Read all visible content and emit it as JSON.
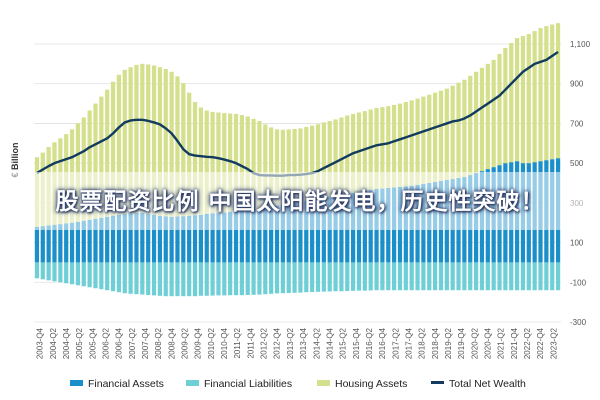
{
  "banner": {
    "text": "股票配资比例 中国太阳能发电，历史性突破！"
  },
  "chart_data": {
    "type": "bar",
    "ylabel": "€ Billion",
    "ylim": [
      -300,
      1200
    ],
    "yticks": [
      1100,
      900,
      700,
      500,
      300,
      100,
      -100,
      -300
    ],
    "grid": true,
    "legend_position": "bottom",
    "colors": {
      "financial_assets": "#1a8fc9",
      "financial_liabilities": "#6ed0d6",
      "housing_assets": "#d4e08c",
      "total_net_wealth": "#123b5e"
    },
    "xtick_labels": [
      "2003-Q4",
      "2004-Q2",
      "2004-Q4",
      "2005-Q2",
      "2005-Q4",
      "2006-Q2",
      "2006-Q4",
      "2007-Q2",
      "2007-Q4",
      "2008-Q2",
      "2008-Q4",
      "2009-Q2",
      "2009-Q4",
      "2010-Q2",
      "2010-Q4",
      "2011-Q2",
      "2011-Q4",
      "2012-Q2",
      "2012-Q4",
      "2013-Q2",
      "2013-Q4",
      "2014-Q2",
      "2014-Q4",
      "2015-Q2",
      "2015-Q4",
      "2016-Q2",
      "2016-Q4",
      "2017-Q2",
      "2017-Q4",
      "2018-Q2",
      "2018-Q4",
      "2019-Q2",
      "2019-Q4",
      "2020-Q2",
      "2020-Q4",
      "2021-Q2",
      "2021-Q4",
      "2022-Q2",
      "2022-Q4",
      "2023-Q2"
    ],
    "series": [
      {
        "name": "Financial Assets",
        "key": "financial_assets",
        "values": [
          180,
          183,
          186,
          190,
          193,
          196,
          200,
          205,
          210,
          215,
          220,
          225,
          230,
          235,
          240,
          245,
          248,
          250,
          250,
          245,
          240,
          235,
          232,
          230,
          232,
          233,
          235,
          238,
          240,
          245,
          248,
          250,
          252,
          255,
          258,
          262,
          265,
          268,
          272,
          275,
          280,
          285,
          290,
          295,
          300,
          305,
          310,
          315,
          320,
          325,
          330,
          335,
          340,
          345,
          350,
          355,
          360,
          365,
          370,
          372,
          375,
          378,
          380,
          383,
          386,
          390,
          395,
          400,
          405,
          410,
          415,
          420,
          425,
          430,
          440,
          450,
          460,
          470,
          480,
          490,
          500,
          505,
          510,
          500,
          500,
          505,
          510,
          515,
          520,
          525
        ]
      },
      {
        "name": "Financial Liabilities",
        "key": "financial_liabilities",
        "values": [
          -80,
          -85,
          -90,
          -95,
          -100,
          -105,
          -110,
          -115,
          -120,
          -125,
          -130,
          -135,
          -140,
          -145,
          -150,
          -155,
          -158,
          -160,
          -162,
          -164,
          -166,
          -168,
          -170,
          -170,
          -170,
          -170,
          -170,
          -170,
          -168,
          -168,
          -167,
          -166,
          -166,
          -165,
          -165,
          -165,
          -164,
          -163,
          -162,
          -160,
          -158,
          -156,
          -155,
          -154,
          -153,
          -152,
          -150,
          -149,
          -148,
          -147,
          -146,
          -145,
          -145,
          -144,
          -143,
          -142,
          -142,
          -141,
          -140,
          -140,
          -140,
          -140,
          -140,
          -140,
          -140,
          -140,
          -140,
          -140,
          -140,
          -140,
          -140,
          -140,
          -140,
          -140,
          -140,
          -140,
          -140,
          -140,
          -140,
          -140,
          -140,
          -140,
          -140,
          -140,
          -140,
          -140,
          -140,
          -140,
          -140,
          -140
        ]
      },
      {
        "name": "Housing Assets",
        "key": "housing_assets",
        "values": [
          350,
          370,
          395,
          415,
          432,
          450,
          470,
          495,
          520,
          550,
          580,
          610,
          640,
          675,
          705,
          725,
          735,
          745,
          750,
          752,
          752,
          748,
          742,
          730,
          705,
          670,
          620,
          570,
          540,
          520,
          510,
          505,
          500,
          495,
          490,
          480,
          470,
          455,
          440,
          420,
          400,
          385,
          378,
          375,
          372,
          370,
          372,
          374,
          376,
          380,
          382,
          385,
          390,
          395,
          398,
          400,
          402,
          405,
          408,
          410,
          412,
          415,
          420,
          425,
          430,
          435,
          440,
          445,
          450,
          455,
          460,
          470,
          480,
          490,
          500,
          510,
          520,
          530,
          540,
          560,
          580,
          600,
          620,
          640,
          650,
          660,
          670,
          675,
          678,
          680
        ]
      },
      {
        "name": "Total Net Wealth",
        "key": "total_net_wealth",
        "type": "line",
        "values": [
          450,
          468,
          485,
          500,
          510,
          520,
          530,
          545,
          560,
          580,
          595,
          610,
          625,
          650,
          680,
          705,
          715,
          718,
          718,
          713,
          705,
          695,
          675,
          650,
          612,
          570,
          545,
          538,
          535,
          532,
          530,
          525,
          518,
          510,
          500,
          485,
          470,
          450,
          440,
          438,
          438,
          437,
          437,
          440,
          440,
          442,
          445,
          450,
          460,
          475,
          490,
          505,
          520,
          535,
          550,
          560,
          570,
          580,
          590,
          595,
          600,
          610,
          620,
          630,
          640,
          650,
          660,
          670,
          680,
          690,
          700,
          710,
          715,
          725,
          740,
          760,
          780,
          800,
          820,
          840,
          870,
          900,
          930,
          960,
          980,
          1000,
          1010,
          1020,
          1040,
          1060
        ]
      }
    ]
  }
}
